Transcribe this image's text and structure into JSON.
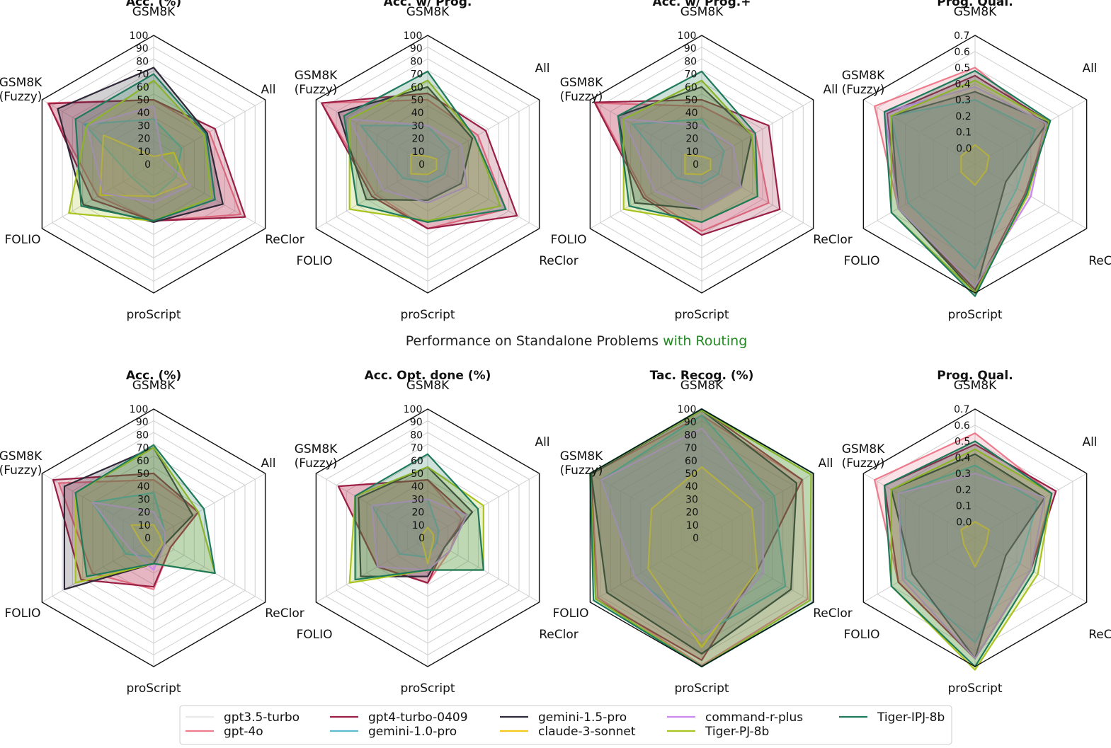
{
  "middle_caption": {
    "prefix": "Performance on Standalone Problems ",
    "suffix": "with Routing"
  },
  "colors": {
    "gpt3.5-turbo": "#f4f4f4",
    "gpt-4o": "#ee7b8c",
    "gpt4-turbo-0409": "#9b1f45",
    "gemini-1.0-pro": "#5bbcd0",
    "gemini-1.5-pro": "#2e2838",
    "claude-3-sonnet": "#f2c81a",
    "command-r-plus": "#cc88ee",
    "Tiger-PJ-8b": "#a9c41e",
    "Tiger-IPJ-8b": "#1e7a5a",
    "accent_green": "#218b21"
  },
  "legend": [
    "gpt3.5-turbo",
    "gpt-4o",
    "gpt4-turbo-0409",
    "gemini-1.0-pro",
    "gemini-1.5-pro",
    "claude-3-sonnet",
    "command-r-plus",
    "Tiger-PJ-8b",
    "Tiger-IPJ-8b"
  ],
  "chart_data": [
    {
      "type": "radar",
      "title": "Acc. (%)",
      "axes": [
        "GSM8K",
        "All",
        "ReClor",
        "proScript",
        "FOLIO",
        "GSM8K\n(Fuzzy)"
      ],
      "ticks": [
        "0",
        "10",
        "20",
        "30",
        "40",
        "50",
        "60",
        "70",
        "80",
        "90",
        "100"
      ],
      "range": [
        0,
        100
      ],
      "series": [
        {
          "name": "gpt3.5-turbo",
          "values": [
            10,
            2,
            3,
            6,
            6,
            27
          ]
        },
        {
          "name": "gpt-4o",
          "values": [
            50,
            50,
            78,
            44,
            50,
            95
          ]
        },
        {
          "name": "gpt4-turbo-0409",
          "values": [
            50,
            55,
            82,
            44,
            55,
            94
          ]
        },
        {
          "name": "gemini-1.0-pro",
          "values": [
            35,
            25,
            20,
            25,
            20,
            62
          ]
        },
        {
          "name": "gemini-1.5-pro",
          "values": [
            75,
            48,
            62,
            45,
            63,
            86
          ]
        },
        {
          "name": "claude-3-sonnet",
          "values": [
            6,
            18,
            30,
            25,
            48,
            45
          ]
        },
        {
          "name": "command-r-plus",
          "values": [
            45,
            8,
            33,
            30,
            45,
            60
          ]
        },
        {
          "name": "Tiger-PJ-8b",
          "values": [
            65,
            45,
            52,
            44,
            76,
            60
          ]
        },
        {
          "name": "Tiger-IPJ-8b",
          "values": [
            70,
            47,
            55,
            44,
            65,
            70
          ]
        }
      ]
    },
    {
      "type": "radar",
      "title": "Acc. w/ Prog.",
      "axes": [
        "GSM8K",
        "All",
        "ReClor",
        "proScript",
        "FOLIO",
        "GSM8K\n(Fuzzy)"
      ],
      "ticks": [
        "0",
        "10",
        "20",
        "30",
        "40",
        "50",
        "60",
        "70",
        "80",
        "90",
        "100"
      ],
      "range": [
        0,
        100
      ],
      "series": [
        {
          "name": "gpt3.5-turbo",
          "values": [
            5,
            8,
            8,
            5,
            6,
            30
          ]
        },
        {
          "name": "gpt-4o",
          "values": [
            50,
            45,
            70,
            50,
            47,
            95
          ]
        },
        {
          "name": "gpt4-turbo-0409",
          "values": [
            55,
            52,
            80,
            50,
            50,
            95
          ]
        },
        {
          "name": "gemini-1.0-pro",
          "values": [
            30,
            20,
            15,
            14,
            22,
            60
          ]
        },
        {
          "name": "gemini-1.5-pro",
          "values": [
            60,
            40,
            30,
            28,
            55,
            80
          ]
        },
        {
          "name": "claude-3-sonnet",
          "values": [
            6,
            8,
            8,
            8,
            15,
            15
          ]
        },
        {
          "name": "command-r-plus",
          "values": [
            30,
            30,
            35,
            30,
            40,
            70
          ]
        },
        {
          "name": "Tiger-PJ-8b",
          "values": [
            65,
            42,
            65,
            44,
            70,
            70
          ]
        },
        {
          "name": "Tiger-IPJ-8b",
          "values": [
            72,
            42,
            70,
            45,
            63,
            75
          ]
        }
      ]
    },
    {
      "type": "radar",
      "title": "Acc. w/ Prog.+",
      "axes": [
        "GSM8K",
        "All",
        "ReClor",
        "proScript",
        "FOLIO",
        "GSM8K\n(Fuzzy)"
      ],
      "ticks": [
        "0",
        "10",
        "20",
        "30",
        "40",
        "50",
        "60",
        "70",
        "80",
        "90",
        "100"
      ],
      "range": [
        0,
        100
      ],
      "series": [
        {
          "name": "gpt3.5-turbo",
          "values": [
            5,
            8,
            8,
            5,
            6,
            30
          ]
        },
        {
          "name": "gpt-4o",
          "values": [
            45,
            48,
            60,
            52,
            50,
            95
          ]
        },
        {
          "name": "gpt4-turbo-0409",
          "values": [
            50,
            60,
            70,
            55,
            52,
            96
          ]
        },
        {
          "name": "gemini-1.0-pro",
          "values": [
            35,
            20,
            15,
            15,
            22,
            62
          ]
        },
        {
          "name": "gemini-1.5-pro",
          "values": [
            60,
            45,
            35,
            35,
            60,
            75
          ]
        },
        {
          "name": "claude-3-sonnet",
          "values": [
            6,
            8,
            8,
            8,
            15,
            15
          ]
        },
        {
          "name": "command-r-plus",
          "values": [
            30,
            28,
            35,
            35,
            42,
            70
          ]
        },
        {
          "name": "Tiger-PJ-8b",
          "values": [
            65,
            45,
            50,
            45,
            70,
            70
          ]
        },
        {
          "name": "Tiger-IPJ-8b",
          "values": [
            72,
            48,
            50,
            45,
            65,
            75
          ]
        }
      ]
    },
    {
      "type": "radar",
      "title": "Prog. Qual.",
      "axes": [
        "GSM8K",
        "All",
        "ReClor",
        "proScript",
        "FOLIO",
        "GSM8K\n(Fuzzy)"
      ],
      "ticks": [
        "0.0",
        "0.1",
        "0.2",
        "0.3",
        "0.4",
        "0.5",
        "0.6",
        "0.7"
      ],
      "range": [
        -0.1,
        0.7
      ],
      "series": [
        {
          "name": "gpt3.5-turbo",
          "values": [
            0.2,
            0.22,
            0.18,
            0.45,
            0.28,
            0.3
          ]
        },
        {
          "name": "gpt-4o",
          "values": [
            0.5,
            0.4,
            0.28,
            0.68,
            0.45,
            0.62
          ]
        },
        {
          "name": "gpt4-turbo-0409",
          "values": [
            0.45,
            0.43,
            0.26,
            0.68,
            0.45,
            0.53
          ]
        },
        {
          "name": "gemini-1.0-pro",
          "values": [
            0.3,
            0.33,
            0.2,
            0.55,
            0.38,
            0.5
          ]
        },
        {
          "name": "gemini-1.5-pro",
          "values": [
            0.35,
            0.42,
            0.12,
            0.7,
            0.45,
            0.5
          ]
        },
        {
          "name": "claude-3-sonnet",
          "values": [
            0.02,
            0.0,
            -0.02,
            0.03,
            0.0,
            0.0
          ]
        },
        {
          "name": "command-r-plus",
          "values": [
            0.38,
            0.41,
            0.3,
            0.66,
            0.45,
            0.55
          ]
        },
        {
          "name": "Tiger-PJ-8b",
          "values": [
            0.42,
            0.43,
            0.28,
            0.7,
            0.5,
            0.5
          ]
        },
        {
          "name": "Tiger-IPJ-8b",
          "values": [
            0.48,
            0.44,
            0.27,
            0.72,
            0.5,
            0.55
          ]
        }
      ]
    },
    {
      "type": "radar",
      "title": "Acc. (%)",
      "axes": [
        "GSM8K",
        "All",
        "ReClor",
        "proScript",
        "FOLIO",
        "GSM8K\n(Fuzzy)"
      ],
      "ticks": [
        "0",
        "10",
        "20",
        "30",
        "40",
        "50",
        "60",
        "70",
        "80",
        "90",
        "100"
      ],
      "range": [
        0,
        100
      ],
      "series": [
        {
          "name": "gpt3.5-turbo",
          "values": [
            10,
            3,
            5,
            10,
            8,
            35
          ]
        },
        {
          "name": "gpt-4o",
          "values": [
            45,
            40,
            15,
            40,
            55,
            85
          ]
        },
        {
          "name": "gpt4-turbo-0409",
          "values": [
            50,
            40,
            15,
            38,
            65,
            90
          ]
        },
        {
          "name": "gemini-1.0-pro",
          "values": [
            35,
            10,
            8,
            15,
            25,
            55
          ]
        },
        {
          "name": "gemini-1.5-pro",
          "values": [
            70,
            35,
            10,
            20,
            80,
            80
          ]
        },
        {
          "name": "claude-3-sonnet",
          "values": [
            10,
            5,
            8,
            15,
            10,
            20
          ]
        },
        {
          "name": "command-r-plus",
          "values": [
            20,
            10,
            10,
            25,
            20,
            55
          ]
        },
        {
          "name": "Tiger-PJ-8b",
          "values": [
            70,
            40,
            55,
            20,
            70,
            70
          ]
        },
        {
          "name": "Tiger-IPJ-8b",
          "values": [
            72,
            45,
            55,
            20,
            60,
            70
          ]
        }
      ]
    },
    {
      "type": "radar",
      "title": "Acc. Opt. done (%)",
      "axes": [
        "GSM8K",
        "All",
        "ReClor",
        "proScript",
        "FOLIO",
        "GSM8K\n(Fuzzy)"
      ],
      "ticks": [
        "0",
        "10",
        "20",
        "30",
        "40",
        "50",
        "60",
        "70",
        "80",
        "90",
        "100"
      ],
      "range": [
        0,
        100
      ],
      "series": [
        {
          "name": "gpt3.5-turbo",
          "values": [
            5,
            3,
            3,
            5,
            5,
            30
          ]
        },
        {
          "name": "gpt-4o",
          "values": [
            45,
            30,
            20,
            35,
            45,
            80
          ]
        },
        {
          "name": "gpt4-turbo-0409",
          "values": [
            45,
            35,
            15,
            35,
            45,
            80
          ]
        },
        {
          "name": "gemini-1.0-pro",
          "values": [
            30,
            10,
            8,
            15,
            25,
            50
          ]
        },
        {
          "name": "gemini-1.5-pro",
          "values": [
            55,
            40,
            15,
            30,
            60,
            62
          ]
        },
        {
          "name": "claude-3-sonnet",
          "values": [
            8,
            5,
            5,
            20,
            5,
            5
          ]
        },
        {
          "name": "command-r-plus",
          "values": [
            30,
            35,
            20,
            25,
            45,
            50
          ]
        },
        {
          "name": "Tiger-PJ-8b",
          "values": [
            55,
            50,
            50,
            25,
            70,
            65
          ]
        },
        {
          "name": "Tiger-IPJ-8b",
          "values": [
            65,
            45,
            50,
            25,
            65,
            65
          ]
        }
      ]
    },
    {
      "type": "radar",
      "title": "Tac. Recog. (%)",
      "axes": [
        "GSM8K",
        "All",
        "ReClor",
        "proScript",
        "FOLIO",
        "GSM8K\n(Fuzzy)"
      ],
      "ticks": [
        "0",
        "10",
        "20",
        "30",
        "40",
        "50",
        "60",
        "70",
        "80",
        "90",
        "100"
      ],
      "range": [
        0,
        100
      ],
      "series": [
        {
          "name": "gpt3.5-turbo",
          "values": [
            80,
            60,
            60,
            50,
            0,
            60
          ]
        },
        {
          "name": "gpt-4o",
          "values": [
            95,
            90,
            95,
            99,
            93,
            99
          ]
        },
        {
          "name": "gpt4-turbo-0409",
          "values": [
            100,
            90,
            50,
            95,
            95,
            99
          ]
        },
        {
          "name": "gemini-1.0-pro",
          "values": [
            95,
            65,
            75,
            75,
            60,
            90
          ]
        },
        {
          "name": "gemini-1.5-pro",
          "values": [
            99,
            85,
            80,
            90,
            85,
            99
          ]
        },
        {
          "name": "claude-3-sonnet",
          "values": [
            55,
            45,
            50,
            85,
            48,
            45
          ]
        },
        {
          "name": "command-r-plus",
          "values": [
            85,
            55,
            55,
            80,
            60,
            90
          ]
        },
        {
          "name": "Tiger-PJ-8b",
          "values": [
            99,
            98,
            97,
            100,
            95,
            100
          ]
        },
        {
          "name": "Tiger-IPJ-8b",
          "values": [
            100,
            100,
            100,
            100,
            97,
            100
          ]
        }
      ]
    },
    {
      "type": "radar",
      "title": "Prog. Qual.",
      "axes": [
        "GSM8K",
        "All",
        "ReClor",
        "proScript",
        "FOLIO",
        "GSM8K\n(Fuzzy)"
      ],
      "ticks": [
        "0.0",
        "0.1",
        "0.2",
        "0.3",
        "0.4",
        "0.5",
        "0.6",
        "0.7"
      ],
      "range": [
        -0.1,
        0.7
      ],
      "series": [
        {
          "name": "gpt3.5-turbo",
          "values": [
            0.3,
            0.3,
            0.18,
            0.5,
            0.3,
            0.35
          ]
        },
        {
          "name": "gpt-4o",
          "values": [
            0.55,
            0.45,
            0.3,
            0.65,
            0.45,
            0.62
          ]
        },
        {
          "name": "gpt4-turbo-0409",
          "values": [
            0.48,
            0.48,
            0.3,
            0.65,
            0.45,
            0.55
          ]
        },
        {
          "name": "gemini-1.0-pro",
          "values": [
            0.35,
            0.35,
            0.22,
            0.55,
            0.4,
            0.45
          ]
        },
        {
          "name": "gemini-1.5-pro",
          "values": [
            0.42,
            0.4,
            0.12,
            0.65,
            0.35,
            0.5
          ]
        },
        {
          "name": "claude-3-sonnet",
          "values": [
            0.0,
            0.0,
            -0.02,
            0.08,
            -0.02,
            0.0
          ]
        },
        {
          "name": "command-r-plus",
          "values": [
            0.3,
            0.4,
            0.3,
            0.65,
            0.42,
            0.45
          ]
        },
        {
          "name": "Tiger-PJ-8b",
          "values": [
            0.45,
            0.45,
            0.35,
            0.72,
            0.5,
            0.5
          ]
        },
        {
          "name": "Tiger-IPJ-8b",
          "values": [
            0.5,
            0.45,
            0.32,
            0.7,
            0.5,
            0.55
          ]
        }
      ]
    }
  ]
}
